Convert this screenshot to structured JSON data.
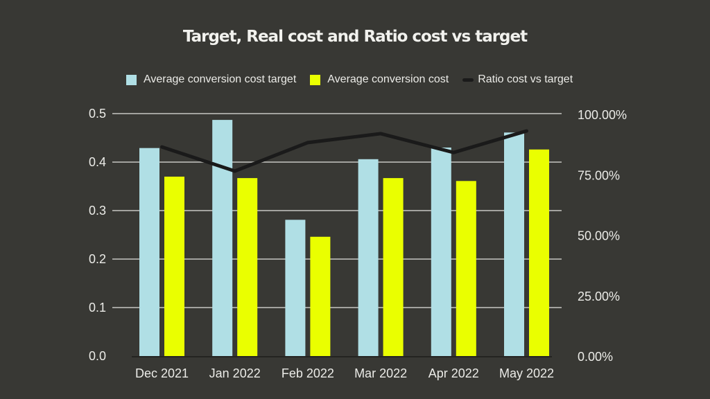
{
  "chart_data": {
    "type": "bar",
    "title": "Target, Real cost and Ratio cost vs target",
    "categories": [
      "Dec 2021",
      "Jan 2022",
      "Feb 2022",
      "Mar 2022",
      "Apr 2022",
      "May 2022"
    ],
    "series": [
      {
        "name": "Average conversion cost target",
        "type": "bar",
        "axis": "left",
        "color": "#b0dfe5",
        "values": [
          0.429,
          0.487,
          0.281,
          0.406,
          0.43,
          0.461
        ]
      },
      {
        "name": "Average conversion cost",
        "type": "bar",
        "axis": "left",
        "color": "#eaff00",
        "values": [
          0.37,
          0.367,
          0.246,
          0.367,
          0.361,
          0.426
        ]
      },
      {
        "name": "Ratio cost vs target",
        "type": "line",
        "axis": "right",
        "color": "#1a1a1a",
        "values": [
          0.865,
          0.765,
          0.883,
          0.92,
          0.842,
          0.931
        ]
      }
    ],
    "left_axis": {
      "ylim": [
        0,
        0.5
      ],
      "ticks": [
        0.0,
        0.1,
        0.2,
        0.3,
        0.4,
        0.5
      ],
      "tick_labels": [
        "0.0",
        "0.1",
        "0.2",
        "0.3",
        "0.4",
        "0.5"
      ]
    },
    "right_axis": {
      "ylim": [
        0,
        1
      ],
      "ticks": [
        0,
        0.25,
        0.5,
        0.75,
        1.0
      ],
      "tick_labels": [
        "0.00%",
        "25.00%",
        "50.00%",
        "75.00%",
        "100.00%"
      ]
    },
    "xlabel": "",
    "ylabel": "",
    "grid": true,
    "legend_position": "top-center"
  },
  "colors": {
    "background": "#383834",
    "grid": "#a3a39f",
    "text": "#ecece8",
    "baseline": "#232321"
  }
}
